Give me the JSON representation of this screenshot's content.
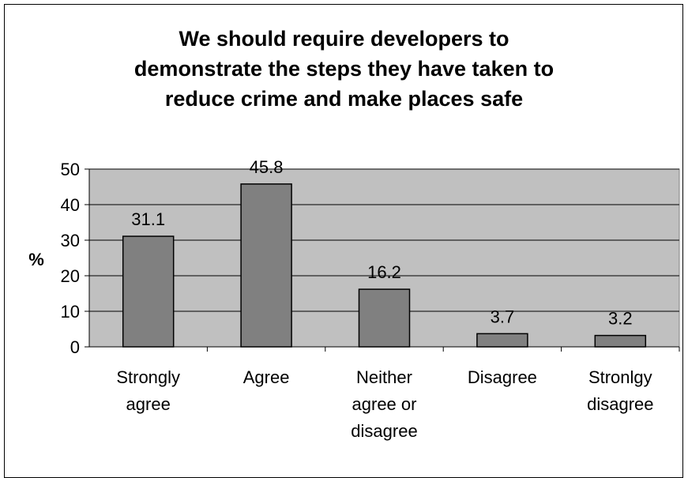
{
  "chart_data": {
    "type": "bar",
    "title_lines": [
      "We should require developers to",
      "demonstrate the steps they have taken to",
      "reduce crime and make places safe"
    ],
    "ylabel": "%",
    "xlabel": "",
    "ylim": [
      0,
      50
    ],
    "yticks": [
      "0",
      "10",
      "20",
      "30",
      "40",
      "50"
    ],
    "categories": [
      [
        "Strongly",
        "agree"
      ],
      [
        "Agree"
      ],
      [
        "Neither",
        "agree or",
        "disagree"
      ],
      [
        "Disagree"
      ],
      [
        "Stronlgy",
        "disagree"
      ]
    ],
    "values": [
      31.1,
      45.8,
      16.2,
      3.7,
      3.2
    ],
    "data_labels": [
      "31.1",
      "45.8",
      "16.2",
      "3.7",
      "3.2"
    ],
    "grid": true,
    "legend": "none",
    "colors": {
      "plot_background": "#c0c0c0",
      "bar_fill": "#808080",
      "bar_stroke": "#000000",
      "gridline": "#000000"
    }
  }
}
